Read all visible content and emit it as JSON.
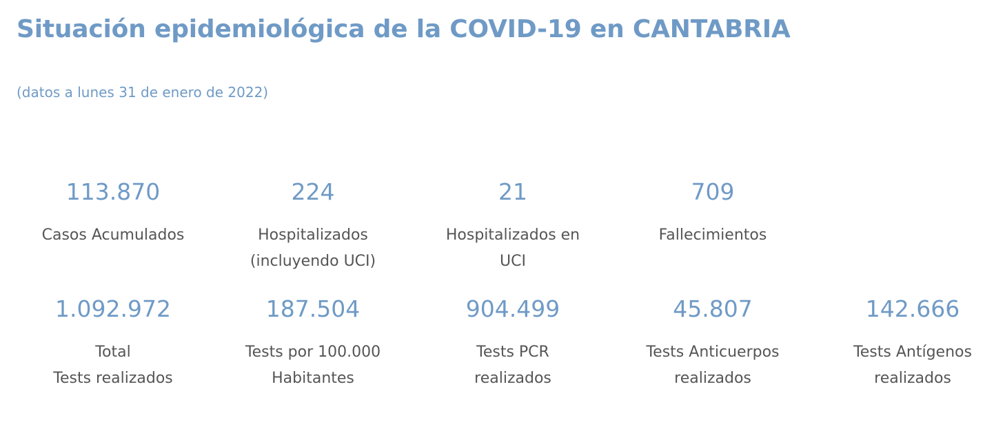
{
  "colors": {
    "accent": "#6f9ac6",
    "text": "#555555",
    "background": "#ffffff"
  },
  "header": {
    "title": "Situación epidemiológica de la COVID-19 en CANTABRIA",
    "subtitle": "(datos a lunes 31 de enero de 2022)"
  },
  "stats_row1": [
    {
      "value": "113.870",
      "label": "Casos Acumulados"
    },
    {
      "value": "224",
      "label": "Hospitalizados\n(incluyendo UCI)"
    },
    {
      "value": "21",
      "label": "Hospitalizados en\nUCI"
    },
    {
      "value": "709",
      "label": "Fallecimientos"
    }
  ],
  "stats_row2": [
    {
      "value": "1.092.972",
      "label": "Total\nTests realizados"
    },
    {
      "value": "187.504",
      "label": "Tests por 100.000\nHabitantes"
    },
    {
      "value": "904.499",
      "label": "Tests PCR\nrealizados"
    },
    {
      "value": "45.807",
      "label": "Tests Anticuerpos\nrealizados"
    },
    {
      "value": "142.666",
      "label": "Tests Antígenos\nrealizados"
    }
  ]
}
